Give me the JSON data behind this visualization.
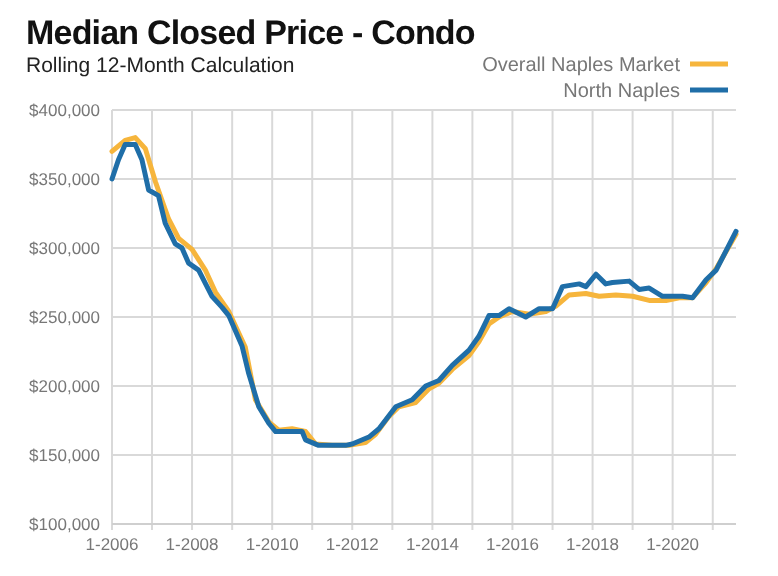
{
  "chart_data": {
    "type": "line",
    "title": "Median Closed Price - Condo",
    "subtitle": "Rolling 12-Month Calculation",
    "series": [
      {
        "name": "Overall Naples Market",
        "color": "#f6b53c",
        "x": [
          "2006-01",
          "2006-05",
          "2006-08",
          "2006-11",
          "2007-02",
          "2007-06",
          "2007-09",
          "2008-01",
          "2008-05",
          "2008-08",
          "2008-12",
          "2009-05",
          "2009-08",
          "2009-12",
          "2010-03",
          "2010-07",
          "2010-11",
          "2011-02",
          "2011-07",
          "2011-12",
          "2012-05",
          "2012-08",
          "2012-12",
          "2013-03",
          "2013-08",
          "2013-12",
          "2014-03",
          "2014-07",
          "2014-12",
          "2015-03",
          "2015-06",
          "2015-09",
          "2016-01",
          "2016-06",
          "2016-11",
          "2017-02",
          "2017-06",
          "2017-11",
          "2018-03",
          "2018-08",
          "2019-01",
          "2019-06",
          "2019-11",
          "2020-03",
          "2020-07",
          "2020-11",
          "2021-02",
          "2021-08"
        ],
        "values": [
          370000,
          378000,
          380000,
          372000,
          348000,
          321000,
          307000,
          299000,
          284000,
          268000,
          254000,
          228000,
          190000,
          174000,
          168000,
          169000,
          167000,
          158000,
          157000,
          157000,
          159000,
          165000,
          178000,
          185000,
          188000,
          198000,
          202000,
          212000,
          222000,
          232000,
          245000,
          250000,
          254000,
          252000,
          254000,
          258000,
          266000,
          267000,
          265000,
          266000,
          265000,
          262000,
          262000,
          264000,
          264000,
          275000,
          285000,
          310000
        ]
      },
      {
        "name": "North Naples",
        "color": "#1f6ea8",
        "x": [
          "2006-01",
          "2006-03",
          "2006-05",
          "2006-08",
          "2006-10",
          "2006-12",
          "2007-03",
          "2007-05",
          "2007-08",
          "2007-10",
          "2007-12",
          "2008-03",
          "2008-07",
          "2008-10",
          "2008-12",
          "2009-04",
          "2009-06",
          "2009-09",
          "2009-12",
          "2010-02",
          "2010-10",
          "2010-11",
          "2011-03",
          "2011-11",
          "2012-01",
          "2012-06",
          "2012-09",
          "2013-02",
          "2013-07",
          "2013-11",
          "2014-03",
          "2014-07",
          "2014-12",
          "2015-03",
          "2015-06",
          "2015-09",
          "2015-12",
          "2016-05",
          "2016-09",
          "2017-01",
          "2017-04",
          "2017-09",
          "2017-11",
          "2018-02",
          "2018-05",
          "2018-07",
          "2018-12",
          "2019-03",
          "2019-06",
          "2019-10",
          "2020-04",
          "2020-07",
          "2020-11",
          "2021-02",
          "2021-08"
        ],
        "values": [
          350000,
          364000,
          375000,
          375000,
          364000,
          342000,
          338000,
          318000,
          303000,
          300000,
          289000,
          284000,
          265000,
          257000,
          251000,
          229000,
          209000,
          185000,
          173000,
          167000,
          167000,
          161000,
          157000,
          157000,
          158000,
          163000,
          169000,
          185000,
          190000,
          200000,
          204000,
          215000,
          226000,
          236000,
          251000,
          251000,
          256000,
          250000,
          256000,
          256000,
          272000,
          274000,
          272000,
          281000,
          274000,
          275000,
          276000,
          270000,
          271000,
          265000,
          265000,
          264000,
          277000,
          284000,
          312000
        ]
      }
    ],
    "xlim": [
      "2006-01",
      "2021-08"
    ],
    "xticks": [
      {
        "value": "2006-01",
        "label": "1-2006"
      },
      {
        "value": "2007-01",
        "label": null
      },
      {
        "value": "2008-01",
        "label": "1-2008"
      },
      {
        "value": "2009-01",
        "label": null
      },
      {
        "value": "2010-01",
        "label": "1-2010"
      },
      {
        "value": "2011-01",
        "label": null
      },
      {
        "value": "2012-01",
        "label": "1-2012"
      },
      {
        "value": "2013-01",
        "label": null
      },
      {
        "value": "2014-01",
        "label": "1-2014"
      },
      {
        "value": "2015-01",
        "label": null
      },
      {
        "value": "2016-01",
        "label": "1-2016"
      },
      {
        "value": "2017-01",
        "label": null
      },
      {
        "value": "2018-01",
        "label": "1-2018"
      },
      {
        "value": "2019-01",
        "label": null
      },
      {
        "value": "2020-01",
        "label": "1-2020"
      },
      {
        "value": "2021-01",
        "label": null
      }
    ],
    "ylim": [
      100000,
      400000
    ],
    "yticks": [
      {
        "value": 100000,
        "label": "$100,000"
      },
      {
        "value": 150000,
        "label": "$150,000"
      },
      {
        "value": 200000,
        "label": "$200,000"
      },
      {
        "value": 250000,
        "label": "$250,000"
      },
      {
        "value": 300000,
        "label": "$300,000"
      },
      {
        "value": 350000,
        "label": "$350,000"
      },
      {
        "value": 400000,
        "label": "$400,000"
      }
    ],
    "grid": true,
    "legend": "top right",
    "marker": "none",
    "line_style": "solid"
  }
}
